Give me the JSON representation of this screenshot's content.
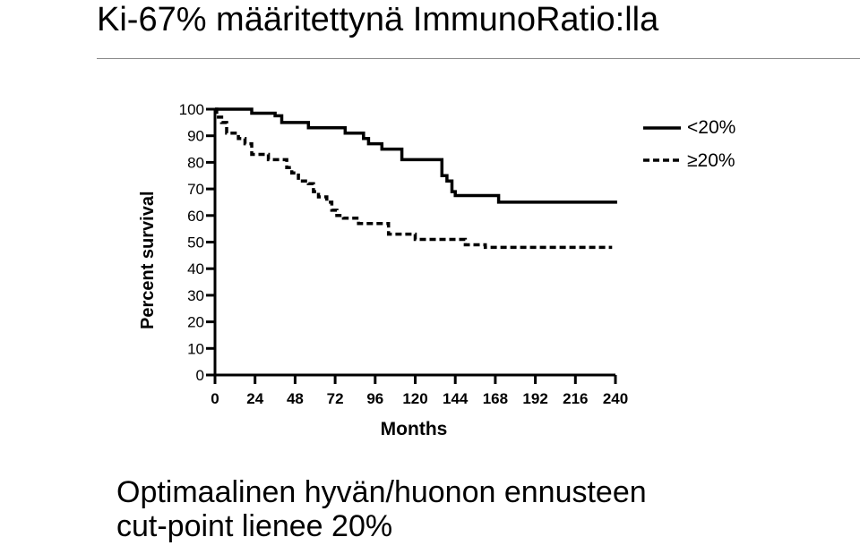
{
  "page": {
    "title": "Ki-67% määritettynä ImmunoRatio:lla",
    "caption_lines": [
      "Optimaalinen hyvän/huonon ennusteen",
      "cut-point lienee 20%"
    ]
  },
  "chart_data": {
    "type": "line",
    "subtype": "kaplan-meier step",
    "title": "",
    "xlabel": "Months",
    "ylabel": "Percent survival",
    "xlim": [
      0,
      240
    ],
    "ylim": [
      0,
      100
    ],
    "xticks": [
      0,
      24,
      48,
      72,
      96,
      120,
      144,
      168,
      192,
      216,
      240
    ],
    "yticks": [
      0,
      10,
      20,
      30,
      40,
      50,
      60,
      70,
      80,
      90,
      100
    ],
    "xtick_labels": [
      "0",
      "24",
      "48",
      "72",
      "96",
      "120",
      "144",
      "168",
      "192",
      "216",
      "240"
    ],
    "ytick_labels": [
      "0",
      "10",
      "20",
      "30",
      "40",
      "50",
      "60",
      "70",
      "80",
      "90",
      "100"
    ],
    "grid": false,
    "legend_position": "top-right",
    "series": [
      {
        "name": "<20%",
        "style": "solid",
        "color": "#000000",
        "x": [
          0,
          22,
          22,
          36,
          36,
          40,
          40,
          56,
          56,
          78,
          78,
          89,
          89,
          92,
          92,
          100,
          100,
          112,
          112,
          136,
          136,
          139,
          139,
          142,
          142,
          144,
          144,
          170,
          170,
          241
        ],
        "y": [
          100,
          100,
          98.5,
          98.5,
          97.5,
          97.5,
          95,
          95,
          93,
          93,
          91,
          91,
          89,
          89,
          87,
          87,
          85,
          85,
          81,
          81,
          75,
          75,
          73,
          73,
          69,
          69,
          67.5,
          67.5,
          65,
          65
        ]
      },
      {
        "name": "≥20%",
        "style": "dashed",
        "color": "#000000",
        "x": [
          0,
          1,
          1,
          4,
          4,
          7,
          7,
          14,
          14,
          18,
          18,
          22,
          22,
          32,
          32,
          43,
          43,
          46,
          46,
          50,
          50,
          56,
          56,
          59,
          59,
          62,
          62,
          67,
          67,
          70,
          70,
          73,
          73,
          77,
          77,
          86,
          86,
          104,
          104,
          120,
          120,
          150,
          150,
          162,
          162,
          238
        ],
        "y": [
          100,
          100,
          97,
          97,
          95,
          95,
          91,
          91,
          89,
          89,
          87,
          87,
          83,
          83,
          81,
          81,
          78,
          78,
          76,
          76,
          73,
          73,
          72,
          72,
          69,
          69,
          67,
          67,
          65,
          65,
          62,
          62,
          60,
          60,
          59,
          59,
          57,
          57,
          53,
          53,
          51,
          51,
          49,
          49,
          48,
          48
        ]
      }
    ],
    "legend_labels": [
      "<20%",
      "≥20%"
    ]
  }
}
